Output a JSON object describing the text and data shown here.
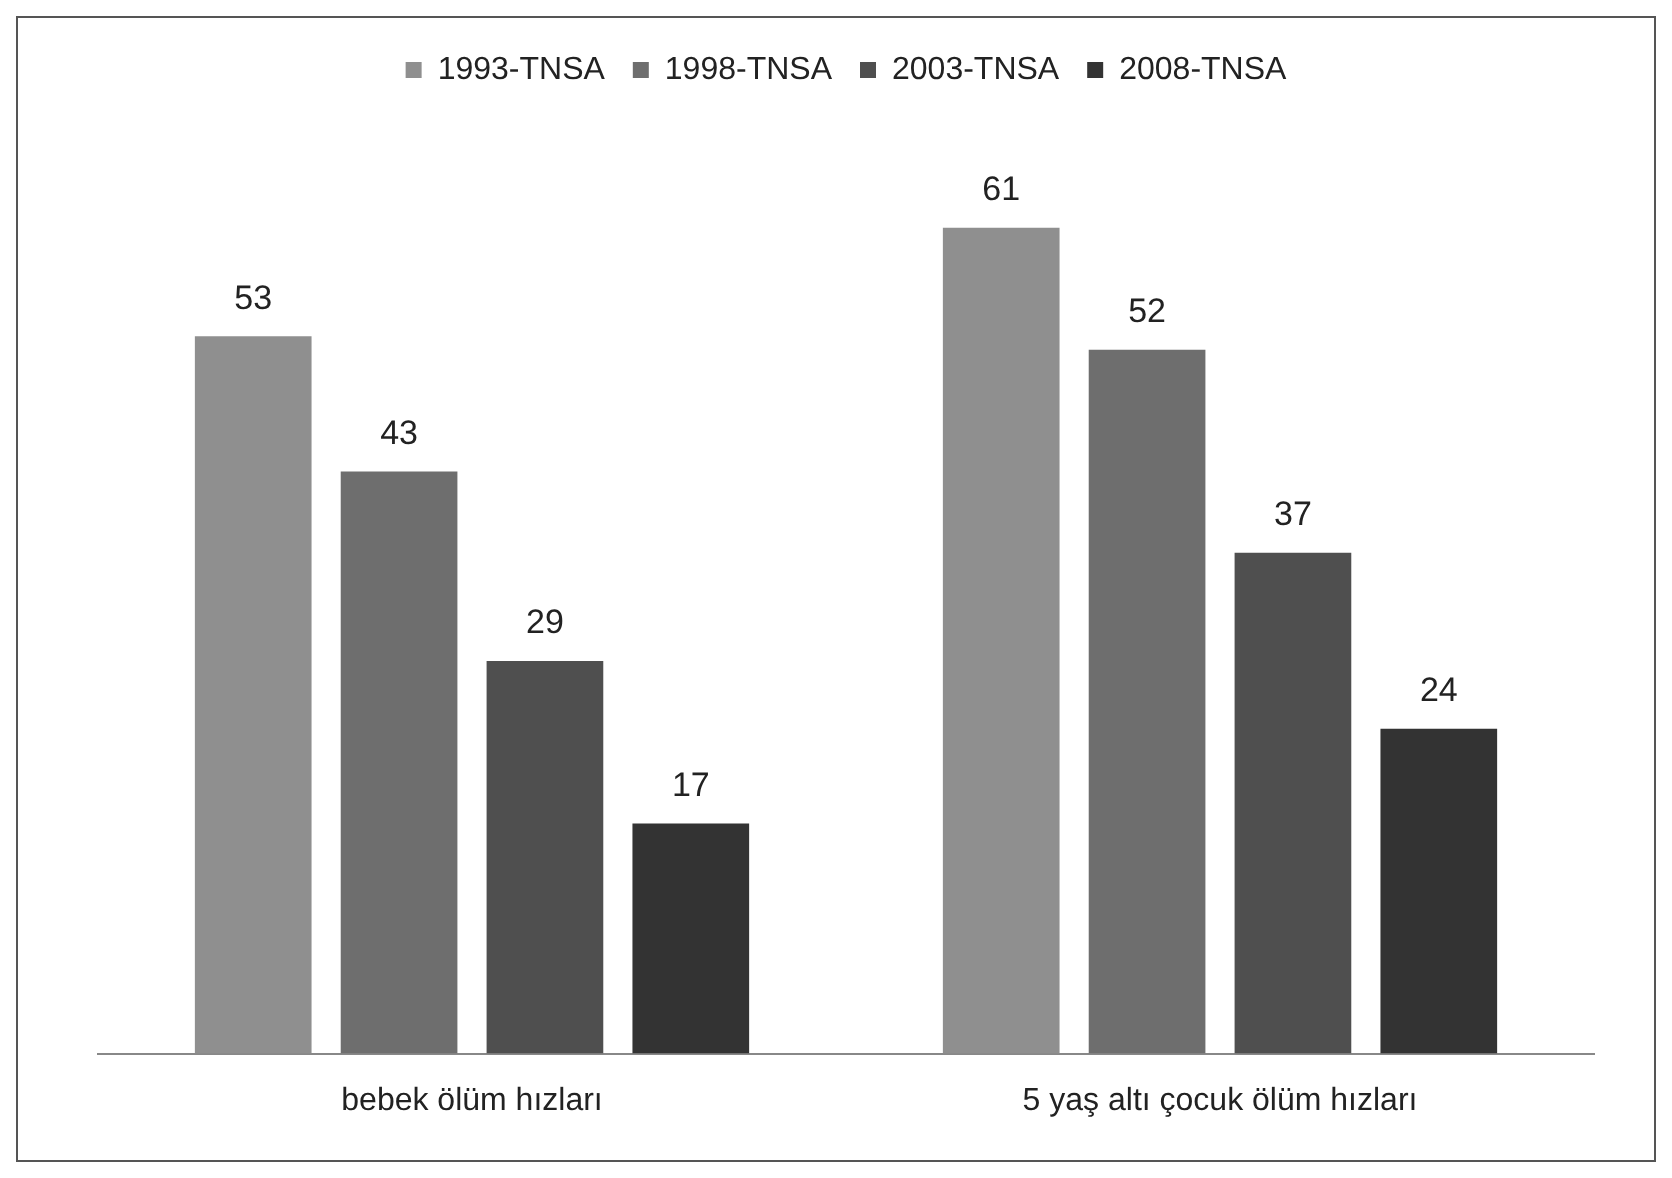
{
  "chart_data": {
    "type": "bar",
    "categories": [
      "bebek ölüm hızları",
      "5 yaş altı çocuk ölüm hızları"
    ],
    "series": [
      {
        "name": "1993-TNSA",
        "color": "#8f8f8f",
        "values": [
          53,
          61
        ]
      },
      {
        "name": "1998-TNSA",
        "color": "#6e6e6e",
        "values": [
          43,
          52
        ]
      },
      {
        "name": "2003-TNSA",
        "color": "#4f4f4f",
        "values": [
          29,
          37
        ]
      },
      {
        "name": "2008-TNSA",
        "color": "#333333",
        "values": [
          17,
          24
        ]
      }
    ],
    "data_labels": true,
    "legend": "top",
    "grid": false
  }
}
